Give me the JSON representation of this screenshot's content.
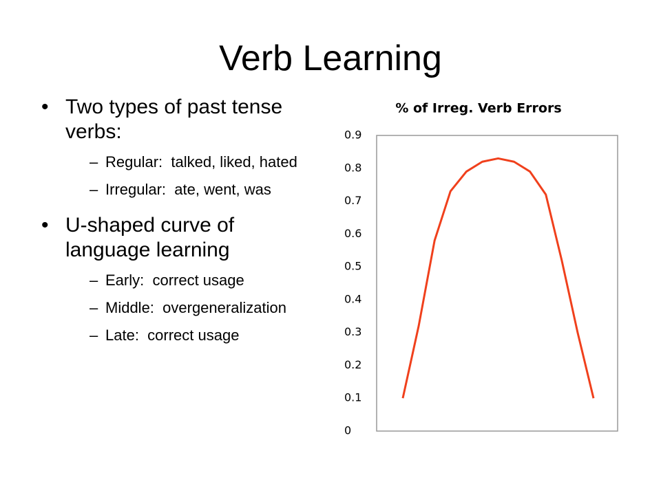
{
  "title": "Verb Learning",
  "bullets": [
    {
      "text": "Two types of past tense verbs:",
      "subs": [
        "Regular:  talked, liked, hated",
        "Irregular:  ate, went, was"
      ]
    },
    {
      "text": "U-shaped curve of language learning",
      "subs": [
        "Early:  correct usage",
        "Middle:  overgeneralization",
        "Late:  correct usage"
      ]
    }
  ],
  "chart_data": {
    "type": "line",
    "title": "% of Irreg. Verb Errors",
    "categories": [
      null,
      null,
      null,
      null,
      null,
      null,
      null,
      null,
      null,
      null,
      null,
      null,
      null
    ],
    "series": [
      {
        "name": null,
        "color": "#f0401c",
        "values": [
          0.1,
          0.32,
          0.58,
          0.73,
          0.79,
          0.82,
          0.83,
          0.82,
          0.79,
          0.72,
          0.52,
          0.3,
          0.1
        ]
      }
    ],
    "ylim": [
      0,
      0.9
    ],
    "yticks": [
      0,
      0.1,
      0.2,
      0.3,
      0.4,
      0.5,
      0.6,
      0.7,
      0.8,
      0.9
    ],
    "grid": false
  }
}
